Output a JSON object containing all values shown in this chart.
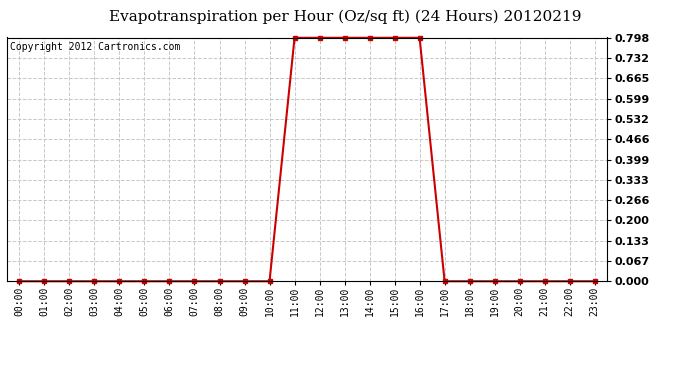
{
  "title": "Evapotranspiration per Hour (Oz/sq ft) (24 Hours) 20120219",
  "copyright": "Copyright 2012 Cartronics.com",
  "x_labels": [
    "00:00",
    "01:00",
    "02:00",
    "03:00",
    "04:00",
    "05:00",
    "06:00",
    "07:00",
    "08:00",
    "09:00",
    "10:00",
    "11:00",
    "12:00",
    "13:00",
    "14:00",
    "15:00",
    "16:00",
    "17:00",
    "18:00",
    "19:00",
    "20:00",
    "21:00",
    "22:00",
    "23:00"
  ],
  "hours": [
    0,
    1,
    2,
    3,
    4,
    5,
    6,
    7,
    8,
    9,
    10,
    11,
    12,
    13,
    14,
    15,
    16,
    17,
    18,
    19,
    20,
    21,
    22,
    23
  ],
  "values": [
    0,
    0,
    0,
    0,
    0,
    0,
    0,
    0,
    0,
    0,
    0,
    0.798,
    0.798,
    0.798,
    0.798,
    0.798,
    0.798,
    0,
    0,
    0,
    0,
    0,
    0,
    0
  ],
  "line_color": "#cc0000",
  "marker": "s",
  "marker_size": 3,
  "bg_color": "#ffffff",
  "plot_bg_color": "#ffffff",
  "grid_color": "#c8c8c8",
  "grid_style": "--",
  "ylim_min": 0,
  "ylim_max": 0.798,
  "yticks": [
    0.0,
    0.067,
    0.133,
    0.2,
    0.266,
    0.333,
    0.399,
    0.466,
    0.532,
    0.599,
    0.665,
    0.732,
    0.798
  ],
  "title_fontsize": 11,
  "copyright_fontsize": 7,
  "xtick_fontsize": 7,
  "ytick_fontsize": 8
}
